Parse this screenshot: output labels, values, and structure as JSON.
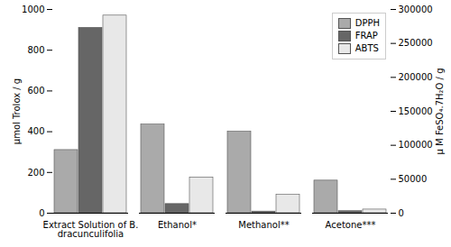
{
  "chart_data": {
    "type": "bar",
    "categories": [
      "Extract Solution of B.\ndracunculifolia",
      "Ethanol*",
      "Methanol**",
      "Acetone***"
    ],
    "series": [
      {
        "name": "DPPH",
        "color": "#aaaaaa",
        "values": [
          310,
          435,
          400,
          160
        ]
      },
      {
        "name": "FRAP",
        "color": "#666666",
        "values": [
          910,
          45,
          8,
          10
        ]
      },
      {
        "name": "ABTS",
        "color": "#e8e8e8",
        "values": [
          970,
          175,
          90,
          18
        ]
      }
    ],
    "ylabel": "μmol Trolox / g",
    "y2label": "μ M FeSO₄.7H₂O / g",
    "ylim": [
      0,
      1000
    ],
    "yticks": [
      0,
      200,
      400,
      600,
      800,
      1000
    ],
    "y2lim": [
      0,
      300000
    ],
    "y2ticks": [
      0,
      50000,
      100000,
      150000,
      200000,
      250000,
      300000
    ],
    "legend": "upper right",
    "grid": false
  }
}
